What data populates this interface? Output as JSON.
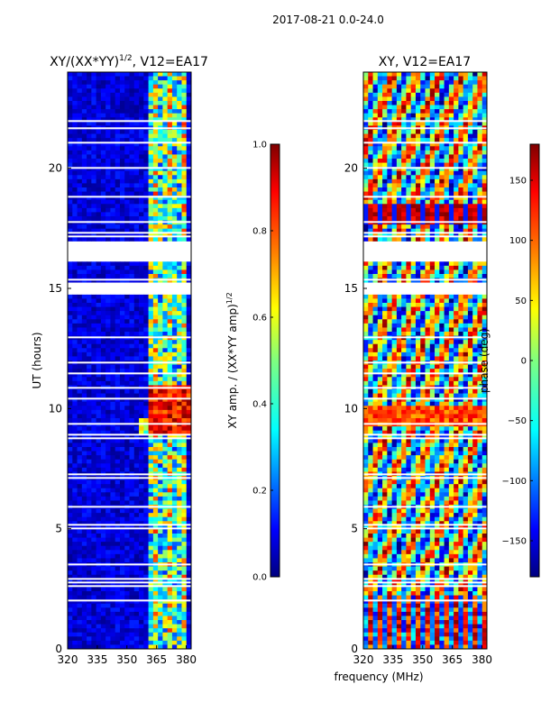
{
  "figure": {
    "suptitle": "2017-08-21 0.0-24.0",
    "shared_xlabel": "frequency (MHz)"
  },
  "chart_data": [
    {
      "type": "heatmap",
      "title": "XY/(XX*YY)",
      "title_superscript": "1/2",
      "title_suffix": ", V12=EA17",
      "xlabel": "",
      "ylabel": "UT (hours)",
      "xlim": [
        320,
        382.5
      ],
      "ylim": [
        0,
        24
      ],
      "xticks": [
        320,
        335,
        350,
        365,
        380
      ],
      "yticks": [
        0,
        5,
        10,
        15,
        20
      ],
      "blank_ut_intervals": [
        [
          14.7,
          15.3
        ],
        [
          16.1,
          16.9
        ]
      ],
      "colorbar": {
        "label": "XY amp. / (XX*YY amp)",
        "label_superscript": "1/2",
        "range": [
          0,
          1
        ],
        "ticks": [
          0.0,
          0.2,
          0.4,
          0.6,
          0.8,
          1.0
        ],
        "tick_labels": [
          "0.0",
          "0.2",
          "0.4",
          "0.6",
          "0.8",
          "1.0"
        ],
        "colormap": "jet"
      }
    },
    {
      "type": "heatmap",
      "title": "XY, V12=EA17",
      "xlabel": "",
      "ylabel": "",
      "xlim": [
        320,
        382.5
      ],
      "ylim": [
        0,
        24
      ],
      "xticks": [
        320,
        335,
        350,
        365,
        380
      ],
      "yticks": [
        0,
        5,
        10,
        15,
        20
      ],
      "blank_ut_intervals": [
        [
          14.7,
          15.3
        ],
        [
          16.1,
          16.9
        ]
      ],
      "colorbar": {
        "label": "phase (deg)",
        "range": [
          -180,
          180
        ],
        "ticks": [
          -150,
          -100,
          -50,
          0,
          50,
          100,
          150
        ],
        "tick_labels": [
          "−150",
          "−100",
          "−50",
          "0",
          "50",
          "100",
          "150"
        ],
        "colormap": "jet"
      }
    }
  ],
  "colors": {
    "jet": [
      "#00007f",
      "#0000ff",
      "#007fff",
      "#00ffff",
      "#7fff7f",
      "#ffff00",
      "#ff7f00",
      "#ff0000",
      "#7f0000"
    ]
  }
}
